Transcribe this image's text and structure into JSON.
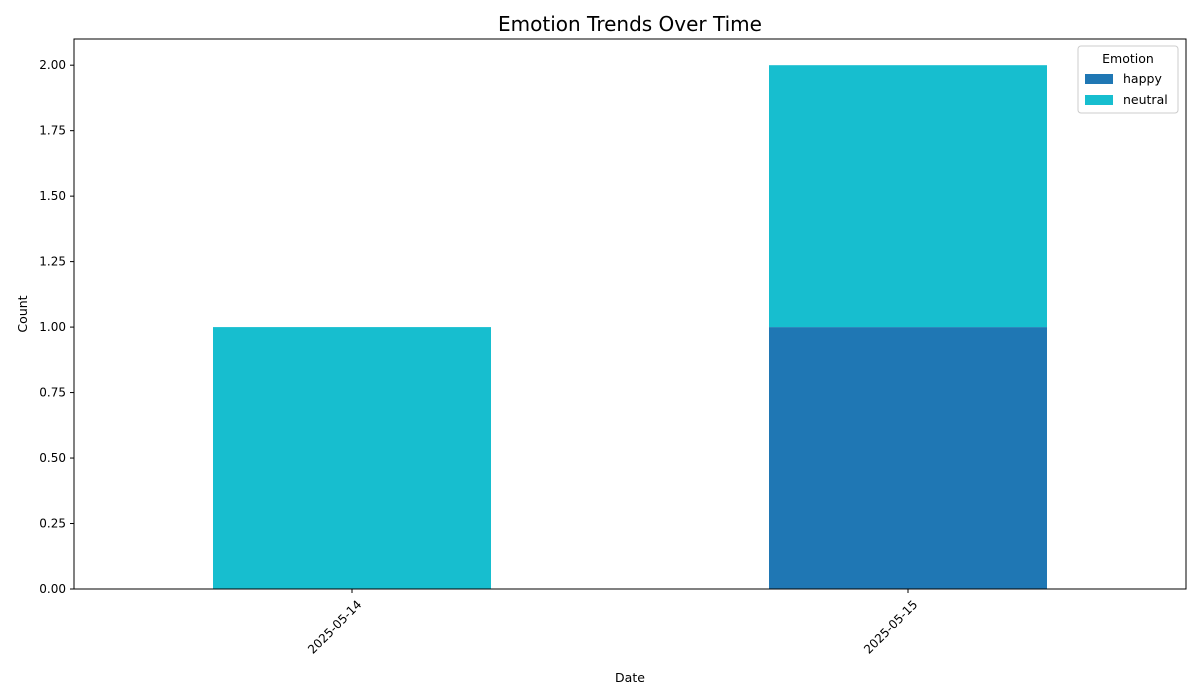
{
  "chart_data": {
    "type": "bar",
    "stacked": true,
    "title": "Emotion Trends Over Time",
    "xlabel": "Date",
    "ylabel": "Count",
    "categories": [
      "2025-05-14",
      "2025-05-15"
    ],
    "series": [
      {
        "name": "happy",
        "values": [
          0,
          1
        ],
        "color": "#1f77b4"
      },
      {
        "name": "neutral",
        "values": [
          1,
          1
        ],
        "color": "#17becf"
      }
    ],
    "ylim": [
      0,
      2.1
    ],
    "yticks": [
      "0.00",
      "0.25",
      "0.50",
      "0.75",
      "1.00",
      "1.25",
      "1.50",
      "1.75",
      "2.00"
    ],
    "grid": false,
    "legend": {
      "title": "Emotion",
      "placement": "top-right"
    }
  }
}
